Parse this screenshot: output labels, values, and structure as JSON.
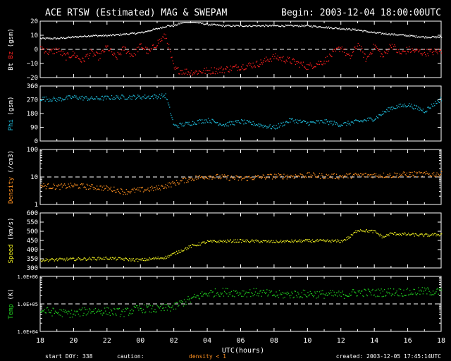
{
  "header": {
    "title": "ACE RTSW (Estimated) MAG & SWEPAM",
    "begin": "Begin: 2003-12-04 18:00:00UTC"
  },
  "footer": {
    "start_doy": "start DOY: 338",
    "caution": "caution:",
    "density_note": "density < 1",
    "created": "created: 2003-12-05 17:45:14UTC"
  },
  "colors": {
    "white": "#ffffff",
    "red": "#ff2020",
    "cyan": "#20c0e0",
    "orange": "#ff9020",
    "yellow": "#f0f020",
    "green": "#20d020"
  },
  "chart_data": {
    "type": "scatter",
    "x_axis": {
      "label": "UTC(hours)",
      "tick_labels": [
        "18",
        "20",
        "22",
        "00",
        "02",
        "04",
        "06",
        "08",
        "10",
        "12",
        "14",
        "16",
        "18"
      ],
      "range_hours": [
        0,
        24
      ]
    },
    "panels": [
      {
        "id": "mag",
        "ylabel_parts": [
          {
            "text": "Bt",
            "color": "#ffffff"
          },
          {
            "text": "Bz",
            "color": "#ff2020"
          },
          {
            "text": "(gsm)",
            "color": "#ffffff"
          }
        ],
        "ylim": [
          -20,
          20
        ],
        "log": false,
        "ticks": [
          {
            "v": 20,
            "t": "20"
          },
          {
            "v": 10,
            "t": "10"
          },
          {
            "v": 0,
            "t": "0"
          },
          {
            "v": -10,
            "t": "−10"
          },
          {
            "v": -20,
            "t": "−20"
          }
        ],
        "dashed_ref": 0,
        "series": [
          {
            "name": "Bt",
            "color": "#ffffff",
            "spread": 0.6,
            "points": [
              [
                0,
                8
              ],
              [
                1,
                8
              ],
              [
                2,
                9
              ],
              [
                3,
                10
              ],
              [
                4,
                10
              ],
              [
                5,
                11
              ],
              [
                6,
                12
              ],
              [
                7,
                15
              ],
              [
                7.6,
                17
              ],
              [
                8,
                17
              ],
              [
                8.4,
                19
              ],
              [
                9,
                20
              ],
              [
                10,
                18
              ],
              [
                11,
                17
              ],
              [
                12,
                17
              ],
              [
                13,
                17
              ],
              [
                14,
                17
              ],
              [
                15,
                17
              ],
              [
                16,
                17
              ],
              [
                17,
                16
              ],
              [
                18,
                15
              ],
              [
                19,
                14
              ],
              [
                20,
                12
              ],
              [
                21,
                11
              ],
              [
                22,
                10
              ],
              [
                23,
                9
              ],
              [
                24,
                9
              ]
            ]
          },
          {
            "name": "Bz",
            "color": "#ff2020",
            "spread": 2.5,
            "points": [
              [
                0,
                2
              ],
              [
                0.5,
                -2
              ],
              [
                1,
                0
              ],
              [
                1.5,
                -5
              ],
              [
                2,
                -3
              ],
              [
                2.5,
                -8
              ],
              [
                3,
                -2
              ],
              [
                3.5,
                -5
              ],
              [
                4,
                2
              ],
              [
                4.5,
                -6
              ],
              [
                5,
                1
              ],
              [
                5.5,
                -4
              ],
              [
                6,
                3
              ],
              [
                6.5,
                -2
              ],
              [
                7,
                5
              ],
              [
                7.5,
                10
              ],
              [
                8,
                -14
              ],
              [
                9,
                -16
              ],
              [
                10,
                -15
              ],
              [
                11,
                -14
              ],
              [
                12,
                -12
              ],
              [
                13,
                -10
              ],
              [
                14,
                -5
              ],
              [
                15,
                -8
              ],
              [
                16,
                -12
              ],
              [
                17,
                -8
              ],
              [
                17.5,
                -3
              ],
              [
                18,
                2
              ],
              [
                18.5,
                -6
              ],
              [
                19,
                4
              ],
              [
                19.5,
                -7
              ],
              [
                20,
                3
              ],
              [
                20.5,
                -5
              ],
              [
                21,
                4
              ],
              [
                21.5,
                -3
              ],
              [
                22,
                0
              ],
              [
                23,
                -2
              ],
              [
                24,
                -1
              ]
            ]
          }
        ]
      },
      {
        "id": "phi",
        "ylabel_parts": [
          {
            "text": "Phi",
            "color": "#20c0e0"
          },
          {
            "text": "(gsm)",
            "color": "#ffffff"
          }
        ],
        "ylim": [
          0,
          360
        ],
        "log": false,
        "ticks": [
          {
            "v": 360,
            "t": "360"
          },
          {
            "v": 270,
            "t": "270"
          },
          {
            "v": 180,
            "t": "180"
          },
          {
            "v": 90,
            "t": "90"
          },
          {
            "v": 0,
            "t": "0"
          }
        ],
        "dashed_ref": null,
        "series": [
          {
            "name": "Phi",
            "color": "#20c0e0",
            "spread": 15,
            "points": [
              [
                0,
                280
              ],
              [
                1,
                275
              ],
              [
                2,
                290
              ],
              [
                3,
                280
              ],
              [
                4,
                285
              ],
              [
                5,
                290
              ],
              [
                6,
                290
              ],
              [
                7,
                295
              ],
              [
                7.5,
                300
              ],
              [
                8,
                100
              ],
              [
                9,
                120
              ],
              [
                10,
                140
              ],
              [
                11,
                110
              ],
              [
                12,
                130
              ],
              [
                13,
                110
              ],
              [
                14,
                90
              ],
              [
                15,
                140
              ],
              [
                16,
                120
              ],
              [
                17,
                130
              ],
              [
                18,
                110
              ],
              [
                19,
                130
              ],
              [
                20,
                150
              ],
              [
                21,
                220
              ],
              [
                22,
                240
              ],
              [
                23,
                200
              ],
              [
                24,
                280
              ]
            ]
          }
        ]
      },
      {
        "id": "density",
        "ylabel_parts": [
          {
            "text": "Density",
            "color": "#ff9020"
          },
          {
            "text": "(/cm3)",
            "color": "#ffffff"
          }
        ],
        "ylim": [
          1,
          100
        ],
        "log": true,
        "ticks": [
          {
            "v": 100,
            "t": "100"
          },
          {
            "v": 10,
            "t": "10"
          },
          {
            "v": 1,
            "t": "1"
          }
        ],
        "dashed_ref": 10,
        "series": [
          {
            "name": "Density",
            "color": "#ff9020",
            "spread": 0.1,
            "points": [
              [
                0,
                5
              ],
              [
                1,
                4.5
              ],
              [
                2,
                5
              ],
              [
                3,
                4.5
              ],
              [
                4,
                4
              ],
              [
                5,
                3
              ],
              [
                6,
                3.5
              ],
              [
                7,
                4
              ],
              [
                8,
                6
              ],
              [
                9,
                9
              ],
              [
                10,
                11
              ],
              [
                11,
                10
              ],
              [
                12,
                9
              ],
              [
                13,
                10
              ],
              [
                14,
                11
              ],
              [
                15,
                11
              ],
              [
                16,
                12
              ],
              [
                17,
                11
              ],
              [
                18,
                11
              ],
              [
                19,
                12
              ],
              [
                20,
                12
              ],
              [
                21,
                12
              ],
              [
                22,
                13
              ],
              [
                23,
                13
              ],
              [
                24,
                13
              ]
            ]
          }
        ]
      },
      {
        "id": "speed",
        "ylabel_parts": [
          {
            "text": "Speed",
            "color": "#f0f020"
          },
          {
            "text": "(km/s)",
            "color": "#ffffff"
          }
        ],
        "ylim": [
          300,
          600
        ],
        "log": false,
        "ticks": [
          {
            "v": 600,
            "t": "600"
          },
          {
            "v": 550,
            "t": "550"
          },
          {
            "v": 500,
            "t": "500"
          },
          {
            "v": 450,
            "t": "450"
          },
          {
            "v": 400,
            "t": "400"
          },
          {
            "v": 350,
            "t": "350"
          },
          {
            "v": 300,
            "t": "300"
          }
        ],
        "dashed_ref": null,
        "series": [
          {
            "name": "Speed",
            "color": "#f0f020",
            "spread": 8,
            "points": [
              [
                0,
                345
              ],
              [
                2,
                350
              ],
              [
                4,
                355
              ],
              [
                6,
                345
              ],
              [
                7.5,
                360
              ],
              [
                8,
                380
              ],
              [
                9,
                420
              ],
              [
                10,
                445
              ],
              [
                12,
                450
              ],
              [
                14,
                445
              ],
              [
                16,
                450
              ],
              [
                18,
                448
              ],
              [
                18.5,
                470
              ],
              [
                19,
                510
              ],
              [
                20,
                500
              ],
              [
                20.5,
                470
              ],
              [
                21,
                490
              ],
              [
                22,
                485
              ],
              [
                23,
                480
              ],
              [
                24,
                485
              ]
            ]
          }
        ]
      },
      {
        "id": "temp",
        "ylabel_parts": [
          {
            "text": "Temp",
            "color": "#20d020"
          },
          {
            "text": "(K)",
            "color": "#ffffff"
          }
        ],
        "ylim": [
          10000,
          1000000
        ],
        "log": true,
        "ticks": [
          {
            "v": 1000000,
            "t": "1.0E+06"
          },
          {
            "v": 100000,
            "t": "1.0E+05"
          },
          {
            "v": 10000,
            "t": "1.0E+04"
          }
        ],
        "dashed_ref": 100000,
        "series": [
          {
            "name": "Temp",
            "color": "#20d020",
            "spread": 0.15,
            "points": [
              [
                0,
                60000
              ],
              [
                1,
                50000
              ],
              [
                2,
                45000
              ],
              [
                3,
                60000
              ],
              [
                4,
                55000
              ],
              [
                5,
                50000
              ],
              [
                6,
                70000
              ],
              [
                7,
                65000
              ],
              [
                8,
                80000
              ],
              [
                9,
                150000
              ],
              [
                10,
                250000
              ],
              [
                11,
                280000
              ],
              [
                12,
                260000
              ],
              [
                13,
                270000
              ],
              [
                14,
                220000
              ],
              [
                15,
                230000
              ],
              [
                16,
                240000
              ],
              [
                17,
                230000
              ],
              [
                18,
                220000
              ],
              [
                19,
                270000
              ],
              [
                20,
                260000
              ],
              [
                21,
                280000
              ],
              [
                22,
                270000
              ],
              [
                23,
                300000
              ],
              [
                24,
                280000
              ]
            ]
          }
        ]
      }
    ]
  }
}
